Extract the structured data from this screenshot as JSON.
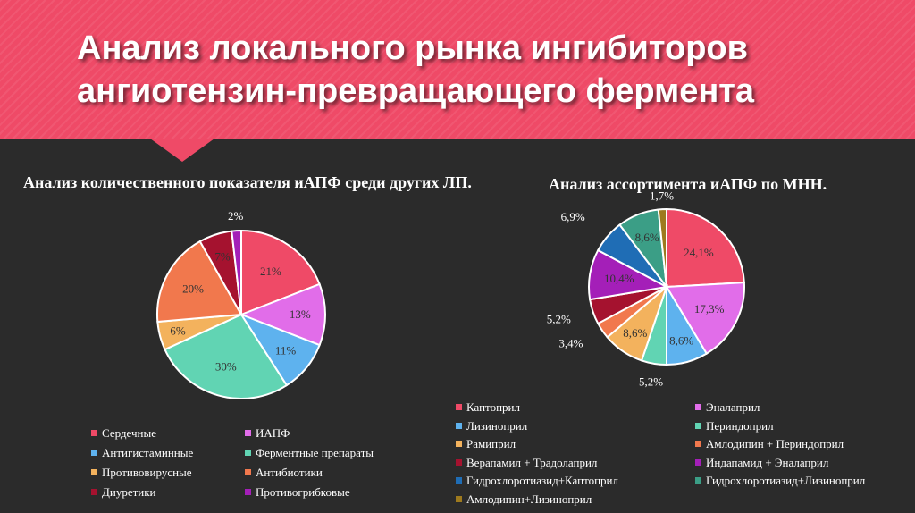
{
  "slide": {
    "title_line1": "Анализ локального рынка ингибиторов",
    "title_line2": "ангиотензин-превращающего фермента"
  },
  "chart_data": [
    {
      "type": "pie",
      "title": "Анализ количественного показателя иАПФ среди других ЛП.",
      "categories": [
        "Сердечные",
        "ИАПФ",
        "Антигистаминные",
        "Ферментные препараты",
        "Противовирусные",
        "Антибиотики",
        "Диуретики",
        "Противогрибковые"
      ],
      "values": [
        21,
        13,
        11,
        30,
        6,
        20,
        7,
        2
      ],
      "value_labels": [
        "21%",
        "13%",
        "11%",
        "30%",
        "6%",
        "20%",
        "7%",
        "2%"
      ],
      "colors": [
        "#ef4a67",
        "#e16de9",
        "#5eb2ee",
        "#61d4b3",
        "#f3b25d",
        "#f1784d",
        "#a5122f",
        "#a41fb8"
      ],
      "legend_position": "bottom"
    },
    {
      "type": "pie",
      "title": "Анализ ассортимента иАПФ по МНН.",
      "categories": [
        "Каптоприл",
        "Эналаприл",
        "Лизиноприл",
        "Периндоприл",
        "Рамиприл",
        "Амлодипин + Периндоприл",
        "Верапамил + Традолаприл",
        "Индапамид + Эналаприл",
        "Гидрохлоротиазид+Каптоприл",
        "Гидрохлоротиазид+Лизиноприл",
        "Амлодипин+Лизиноприл"
      ],
      "values": [
        24.1,
        17.3,
        8.6,
        5.2,
        8.6,
        3.4,
        5.2,
        10.4,
        6.9,
        8.6,
        1.7
      ],
      "value_labels": [
        "24,1%",
        "17,3%",
        "8,6%",
        "5,2%",
        "8,6%",
        "3,4%",
        "5,2%",
        "10,4%",
        "6,9%",
        "8,6%",
        "1,7%"
      ],
      "colors": [
        "#ef4a67",
        "#e16de9",
        "#5eb2ee",
        "#61d4b3",
        "#f3b25d",
        "#f1784d",
        "#a5122f",
        "#a41fb8",
        "#1f6db5",
        "#3b9e86",
        "#9e7a1e"
      ],
      "legend_position": "bottom"
    }
  ]
}
